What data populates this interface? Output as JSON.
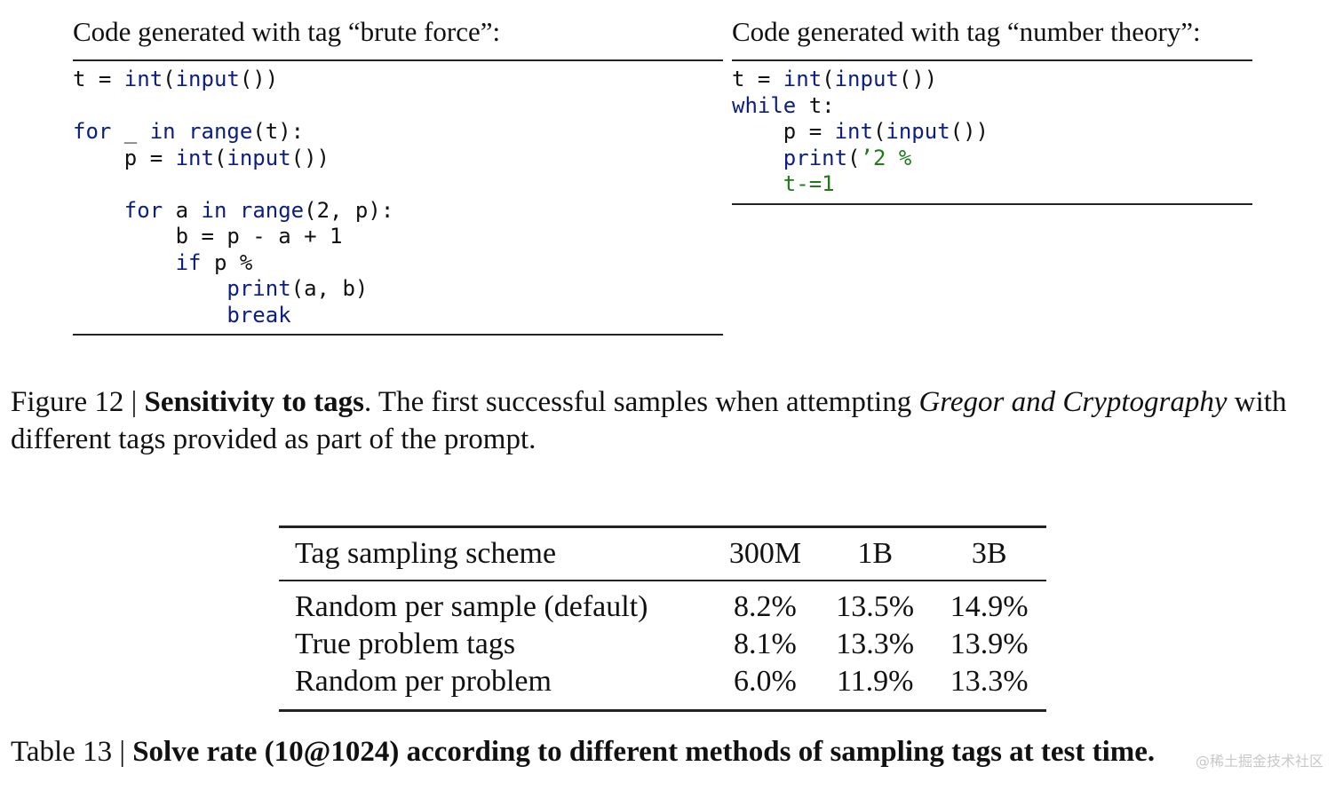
{
  "code_panels": [
    {
      "title": "Code generated with tag “brute force”:",
      "lines": [
        [
          {
            "t": "t = ",
            "c": "pl"
          },
          {
            "t": "int",
            "c": "kw"
          },
          {
            "t": "(",
            "c": "pl"
          },
          {
            "t": "input",
            "c": "kw"
          },
          {
            "t": "())",
            "c": "pl"
          }
        ],
        [],
        [
          {
            "t": "for",
            "c": "kw"
          },
          {
            "t": " _ ",
            "c": "pl"
          },
          {
            "t": "in",
            "c": "kw"
          },
          {
            "t": " ",
            "c": "pl"
          },
          {
            "t": "range",
            "c": "kw"
          },
          {
            "t": "(t):",
            "c": "pl"
          }
        ],
        [
          {
            "t": "    p = ",
            "c": "pl"
          },
          {
            "t": "int",
            "c": "kw"
          },
          {
            "t": "(",
            "c": "pl"
          },
          {
            "t": "input",
            "c": "kw"
          },
          {
            "t": "())",
            "c": "pl"
          }
        ],
        [],
        [
          {
            "t": "    ",
            "c": "pl"
          },
          {
            "t": "for",
            "c": "kw"
          },
          {
            "t": " a ",
            "c": "pl"
          },
          {
            "t": "in",
            "c": "kw"
          },
          {
            "t": " ",
            "c": "pl"
          },
          {
            "t": "range",
            "c": "kw"
          },
          {
            "t": "(2, p):",
            "c": "pl"
          }
        ],
        [
          {
            "t": "        b = p - a + 1",
            "c": "pl"
          }
        ],
        [
          {
            "t": "        ",
            "c": "pl"
          },
          {
            "t": "if",
            "c": "kw"
          },
          {
            "t": " p %",
            "c": "pl"
          }
        ],
        [
          {
            "t": "            ",
            "c": "pl"
          },
          {
            "t": "print",
            "c": "kw"
          },
          {
            "t": "(a, b)",
            "c": "pl"
          }
        ],
        [
          {
            "t": "            ",
            "c": "pl"
          },
          {
            "t": "break",
            "c": "kw"
          }
        ]
      ]
    },
    {
      "title": "Code generated with tag “number theory”:",
      "lines": [
        [
          {
            "t": "t = ",
            "c": "pl"
          },
          {
            "t": "int",
            "c": "kw"
          },
          {
            "t": "(",
            "c": "pl"
          },
          {
            "t": "input",
            "c": "kw"
          },
          {
            "t": "())",
            "c": "pl"
          }
        ],
        [
          {
            "t": "while",
            "c": "kw"
          },
          {
            "t": " t:",
            "c": "pl"
          }
        ],
        [
          {
            "t": "    p = ",
            "c": "pl"
          },
          {
            "t": "int",
            "c": "kw"
          },
          {
            "t": "(",
            "c": "pl"
          },
          {
            "t": "input",
            "c": "kw"
          },
          {
            "t": "())",
            "c": "pl"
          }
        ],
        [
          {
            "t": "    ",
            "c": "pl"
          },
          {
            "t": "print",
            "c": "kw"
          },
          {
            "t": "(",
            "c": "pl"
          },
          {
            "t": "’2 %",
            "c": "str"
          }
        ],
        [
          {
            "t": "    ",
            "c": "pl"
          },
          {
            "t": "t-=1",
            "c": "str"
          }
        ]
      ]
    }
  ],
  "figure_caption": {
    "label": "Figure 12 | ",
    "bold": "Sensitivity to tags",
    "text": ". The first successful samples when attempting ",
    "italic": "Gregor and Cryptography",
    "text2": " with different tags provided as part of the prompt."
  },
  "table": {
    "headers": [
      "Tag sampling scheme",
      "300M",
      "1B",
      "3B"
    ],
    "rows": [
      [
        "Random per sample (default)",
        "8.2%",
        "13.5%",
        "14.9%"
      ],
      [
        "True problem tags",
        "8.1%",
        "13.3%",
        "13.9%"
      ],
      [
        "Random per problem",
        "6.0%",
        "11.9%",
        "13.3%"
      ]
    ]
  },
  "table_caption": {
    "label": "Table 13 | ",
    "bold": "Solve rate (10@1024) according to different methods of sampling tags at test time."
  },
  "watermark": "@稀土掘金技术社区",
  "colors": {
    "keyword": "#0b1d86",
    "string": "#1f7a17",
    "text": "#111111"
  }
}
